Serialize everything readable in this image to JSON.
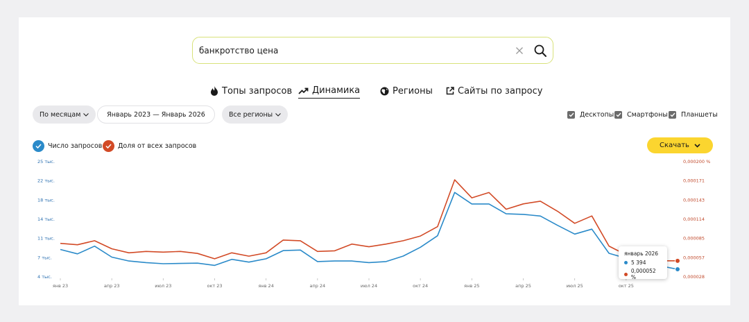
{
  "search": {
    "value": "банкротство цена"
  },
  "tabs": [
    {
      "label": "Топы запросов"
    },
    {
      "label": "Динамика"
    },
    {
      "label": "Регионы"
    },
    {
      "label": "Сайты по запросу"
    }
  ],
  "filters": {
    "period_type": "По месяцам",
    "date_range": "Январь 2023 — Январь 2026",
    "region": "Все регионы"
  },
  "devices": [
    {
      "label": "Десктопы",
      "checked": true
    },
    {
      "label": "Смартфоны",
      "checked": true
    },
    {
      "label": "Планшеты",
      "checked": true
    }
  ],
  "legend": {
    "requests": "Число запросов",
    "share": "Доля от всех запросов"
  },
  "download_label": "Скачать",
  "tooltip": {
    "title": "январь 2026",
    "requests": "5 394",
    "share": "0,000052 %"
  },
  "colors": {
    "requests": "#2a8ac9",
    "share": "#d24a26",
    "accent": "#fbd52f"
  },
  "chart_data": {
    "type": "line",
    "x": [
      "2023-01",
      "2023-02",
      "2023-03",
      "2023-04",
      "2023-05",
      "2023-06",
      "2023-07",
      "2023-08",
      "2023-09",
      "2023-10",
      "2023-11",
      "2023-12",
      "2024-01",
      "2024-02",
      "2024-03",
      "2024-04",
      "2024-05",
      "2024-06",
      "2024-07",
      "2024-08",
      "2024-09",
      "2024-10",
      "2024-11",
      "2024-12",
      "2025-01",
      "2025-02",
      "2025-03",
      "2025-04",
      "2025-05",
      "2025-06",
      "2025-07",
      "2025-08",
      "2025-09",
      "2025-10",
      "2025-11",
      "2025-12",
      "2026-01"
    ],
    "x_tick_labels": [
      "янв 23",
      "апр 23",
      "июл 23",
      "окт 23",
      "янв 24",
      "апр 24",
      "июл 24",
      "окт 24",
      "янв 25",
      "апр 25",
      "июл 25",
      "окт 25"
    ],
    "y_left_ticks": [
      "25 тыс.",
      "22 тыс.",
      "18 тыс.",
      "14 тыс.",
      "11 тыс.",
      "7 тыс.",
      "4 тыс."
    ],
    "y_right_ticks": [
      "0,000200 %",
      "0,000171",
      "0,000143",
      "0,000114",
      "0,000085",
      "0,000057",
      "0,000028"
    ],
    "y_left_lim": [
      4000,
      25000
    ],
    "y_right_lim": [
      2.8e-05,
      0.0002
    ],
    "series": [
      {
        "name": "Число запросов",
        "axis": "left",
        "values": [
          9000,
          8200,
          9600,
          7600,
          6900,
          6600,
          6400,
          6450,
          6500,
          6100,
          7200,
          6700,
          7300,
          8800,
          8900,
          6800,
          6900,
          6900,
          6600,
          6800,
          7800,
          9400,
          11500,
          19400,
          17300,
          17300,
          15500,
          15400,
          15100,
          13400,
          11800,
          12700,
          8300,
          7400,
          6700,
          6000,
          5394
        ]
      },
      {
        "name": "Доля от всех запросов",
        "axis": "right",
        "values": [
          7.8e-05,
          7.6e-05,
          8.2e-05,
          7e-05,
          6.4e-05,
          6.6e-05,
          6.5e-05,
          6.6e-05,
          6.3e-05,
          5.5e-05,
          6.4e-05,
          5.9e-05,
          6.4e-05,
          8.3e-05,
          8.2e-05,
          6.6e-05,
          6.7e-05,
          7.7e-05,
          7.3e-05,
          7.7e-05,
          8.2e-05,
          8.9e-05,
          0.000103,
          0.000173,
          0.000146,
          0.000154,
          0.000129,
          0.000137,
          0.000141,
          0.000126,
          0.000108,
          0.000119,
          7.4e-05,
          6.1e-05,
          5.7e-05,
          5.2e-05,
          5.2e-05
        ]
      }
    ],
    "highlight_index": 36
  }
}
